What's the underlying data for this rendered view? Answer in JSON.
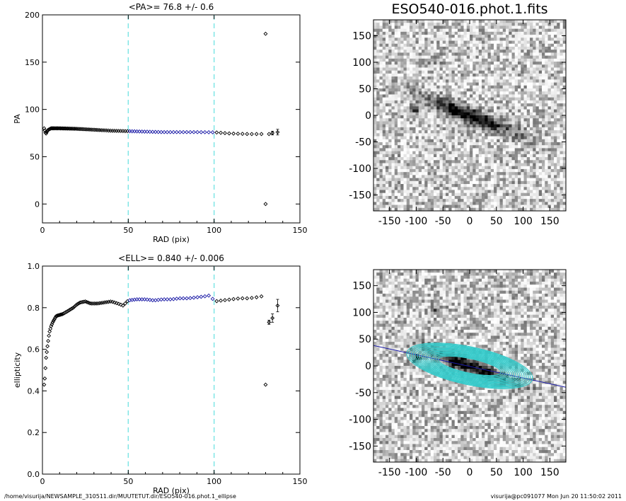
{
  "image_panel_title": "ESO540-016.phot.1.fits",
  "footer_left": "/home/visurija/NEWSAMPLE_310511.dir/MUUTETUT.dir/ESO540-016.phot.1_ellipse",
  "footer_right": "visurija@pc091077  Mon Jun 20 11:50:02 2011",
  "colors": {
    "fit_range": "#7fe6e6",
    "fitted_points": "#1a1aa6",
    "points": "#000000",
    "ellipses": "#33cccc"
  },
  "chart_data": [
    {
      "type": "scatter",
      "title": "<PA>=  76.8 +/-   0.6",
      "xlabel": "RAD (pix)",
      "ylabel": "PA",
      "xlim": [
        0,
        150
      ],
      "ylim": [
        -20,
        200
      ],
      "xticks": [
        0,
        50,
        100,
        150
      ],
      "yticks": [
        0,
        50,
        100,
        150,
        200
      ],
      "fit_range": [
        50,
        100
      ],
      "curve": [
        [
          1,
          80
        ],
        [
          2,
          74
        ],
        [
          3,
          78
        ],
        [
          5,
          80
        ],
        [
          10,
          80
        ],
        [
          20,
          79.5
        ],
        [
          30,
          78.5
        ],
        [
          40,
          77.5
        ],
        [
          50,
          77
        ],
        [
          60,
          76.5
        ],
        [
          70,
          76
        ],
        [
          80,
          76
        ],
        [
          90,
          76
        ],
        [
          100,
          75.8
        ],
        [
          110,
          74.5
        ],
        [
          120,
          74
        ],
        [
          128,
          74
        ]
      ],
      "outliers": [
        {
          "x": 130,
          "y": 180
        },
        {
          "x": 130,
          "y": 0
        },
        {
          "x": 132,
          "y": 74
        },
        {
          "x": 134,
          "y": 75,
          "err": 2
        },
        {
          "x": 137,
          "y": 76,
          "err": 3
        }
      ]
    },
    {
      "type": "scatter",
      "title": "<ELL>= 0.840 +/-  0.006",
      "xlabel": "RAD (pix)",
      "ylabel": "ellipticity",
      "xlim": [
        0,
        150
      ],
      "ylim": [
        0.0,
        1.0
      ],
      "xticks": [
        0,
        50,
        100,
        150
      ],
      "yticks": [
        "0.0",
        "0.2",
        "0.4",
        "0.6",
        "0.8",
        "1.0"
      ],
      "fit_range": [
        50,
        100
      ],
      "curve": [
        [
          1,
          0.43
        ],
        [
          1.5,
          0.47
        ],
        [
          2,
          0.55
        ],
        [
          3,
          0.62
        ],
        [
          4,
          0.68
        ],
        [
          5,
          0.71
        ],
        [
          6,
          0.73
        ],
        [
          8,
          0.76
        ],
        [
          10,
          0.765
        ],
        [
          12,
          0.77
        ],
        [
          14,
          0.78
        ],
        [
          16,
          0.79
        ],
        [
          18,
          0.8
        ],
        [
          20,
          0.815
        ],
        [
          22,
          0.825
        ],
        [
          25,
          0.83
        ],
        [
          28,
          0.82
        ],
        [
          32,
          0.82
        ],
        [
          36,
          0.825
        ],
        [
          40,
          0.83
        ],
        [
          44,
          0.82
        ],
        [
          47,
          0.81
        ],
        [
          50,
          0.835
        ],
        [
          55,
          0.84
        ],
        [
          60,
          0.84
        ],
        [
          65,
          0.835
        ],
        [
          70,
          0.84
        ],
        [
          75,
          0.84
        ],
        [
          80,
          0.845
        ],
        [
          85,
          0.845
        ],
        [
          90,
          0.85
        ],
        [
          95,
          0.855
        ],
        [
          98,
          0.86
        ],
        [
          100,
          0.83
        ],
        [
          105,
          0.835
        ],
        [
          110,
          0.84
        ],
        [
          115,
          0.845
        ],
        [
          120,
          0.845
        ],
        [
          125,
          0.85
        ],
        [
          128,
          0.855
        ]
      ],
      "outliers": [
        {
          "x": 130,
          "y": 0.43
        },
        {
          "x": 132,
          "y": 0.73,
          "err": 0.01
        },
        {
          "x": 134,
          "y": 0.75,
          "err": 0.02
        },
        {
          "x": 137,
          "y": 0.81,
          "err": 0.03
        }
      ]
    }
  ],
  "image_panels": [
    {
      "xticks": [
        -150,
        -100,
        -50,
        0,
        50,
        100,
        150
      ],
      "yticks": [
        150,
        100,
        50,
        0,
        -50,
        -100,
        -150
      ],
      "xlim": [
        -180,
        180
      ],
      "ylim": [
        -180,
        180
      ]
    },
    {
      "xticks": [
        -150,
        -100,
        -50,
        0,
        50,
        100,
        150
      ],
      "yticks": [
        150,
        100,
        50,
        0,
        -50,
        -100,
        -150
      ],
      "xlim": [
        -180,
        180
      ],
      "ylim": [
        -180,
        180
      ],
      "major_axis_pa": 76.8,
      "ellipticity": 0.84
    }
  ]
}
